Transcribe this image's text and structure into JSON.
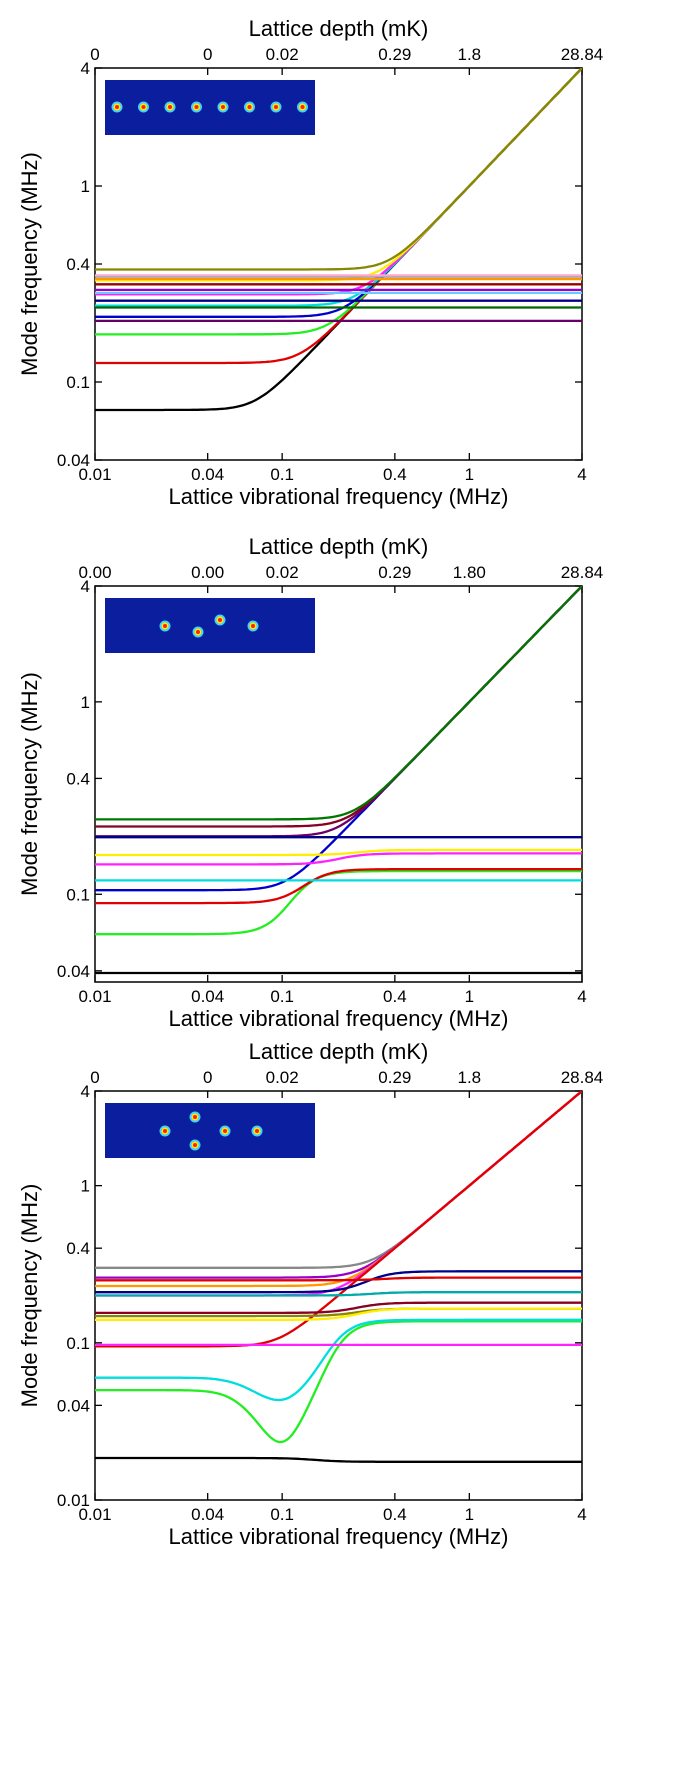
{
  "chart_data": [
    {
      "type": "line",
      "panel": "linear chain of 8 ions",
      "xscale": "log",
      "yscale": "log",
      "xlabel": "Lattice vibrational frequency (MHz)",
      "ylabel": "Mode frequency (MHz)",
      "top_axis_label": "Lattice depth (mK)",
      "xlim": [
        0.01,
        4
      ],
      "ylim": [
        0.04,
        4
      ],
      "x_ticks": [
        "0.01",
        "0.04",
        "0.1",
        "0.4",
        "1",
        "4"
      ],
      "y_ticks": [
        "0.04",
        "0.1",
        "0.4",
        "1",
        "4"
      ],
      "top_ticks": [
        {
          "x": 0.01,
          "label": "0"
        },
        {
          "x": 0.04,
          "label": "0"
        },
        {
          "x": 0.1,
          "label": "0.02"
        },
        {
          "x": 0.4,
          "label": "0.29"
        },
        {
          "x": 1,
          "label": "1.8"
        },
        {
          "x": 4,
          "label": "28.84"
        }
      ],
      "inset_ions": 8,
      "reference": {
        "color": "#aaaaaa",
        "dashed": true,
        "base": 0.072
      },
      "series": [
        {
          "color": "#000000",
          "base": 0.072,
          "trapped": true
        },
        {
          "color": "#e00000",
          "base": 0.125,
          "trapped": true
        },
        {
          "color": "#22ee22",
          "base": 0.175,
          "trapped": true
        },
        {
          "color": "#0000cc",
          "base": 0.215,
          "trapped": true
        },
        {
          "color": "#00dddd",
          "base": 0.245,
          "trapped": true
        },
        {
          "color": "#ff22ff",
          "base": 0.28,
          "trapped": true
        },
        {
          "color": "#ffee00",
          "base": 0.33,
          "trapped": true
        },
        {
          "color": "#888800",
          "base": 0.375,
          "trapped": true
        },
        {
          "color": "#006600",
          "base": 0.24,
          "trapped": false
        },
        {
          "color": "#660066",
          "base": 0.205,
          "trapped": false
        },
        {
          "color": "#000088",
          "base": 0.26,
          "trapped": false
        },
        {
          "color": "#990000",
          "base": 0.315,
          "trapped": false
        },
        {
          "color": "#9900cc",
          "base": 0.295,
          "trapped": false
        },
        {
          "color": "#ff9900",
          "base": 0.335,
          "trapped": false
        },
        {
          "color": "#999999",
          "base": 0.345,
          "trapped": false
        },
        {
          "color": "#ffaacc",
          "base": 0.35,
          "trapped": false
        },
        {
          "color": "#66ccff",
          "base": 0.285,
          "trapped": false
        }
      ]
    },
    {
      "type": "line",
      "panel": "four ions",
      "xscale": "log",
      "yscale": "log",
      "xlabel": "Lattice vibrational frequency (MHz)",
      "ylabel": "Mode frequency (MHz)",
      "top_axis_label": "Lattice depth (mK)",
      "xlim": [
        0.01,
        4
      ],
      "ylim": [
        0.035,
        4
      ],
      "x_ticks": [
        "0.01",
        "0.04",
        "0.1",
        "0.4",
        "1",
        "4"
      ],
      "y_ticks": [
        "0.04",
        "0.1",
        "0.4",
        "1",
        "4"
      ],
      "top_ticks": [
        {
          "x": 0.01,
          "label": "0.00"
        },
        {
          "x": 0.04,
          "label": "0.00"
        },
        {
          "x": 0.1,
          "label": "0.02"
        },
        {
          "x": 0.4,
          "label": "0.29"
        },
        {
          "x": 1,
          "label": "1.80"
        },
        {
          "x": 4,
          "label": "28.84"
        }
      ],
      "inset_ions": 4,
      "reference": {
        "color": "#aaaaaa",
        "dashed": true,
        "base": 0.105
      },
      "series": [
        {
          "color": "#0000cc",
          "base": 0.105,
          "trapped": true
        },
        {
          "color": "#6a006a",
          "base": 0.2,
          "trapped": true
        },
        {
          "color": "#880022",
          "base": 0.225,
          "trapped": true
        },
        {
          "color": "#007700",
          "base": 0.245,
          "trapped": true
        },
        {
          "color": "#000000",
          "base": 0.039,
          "trapped": false
        },
        {
          "color": "#22ee22",
          "base": 0.062,
          "final": 0.132,
          "cross": 0.11
        },
        {
          "color": "#e00000",
          "base": 0.09,
          "final": 0.135,
          "cross": 0.13
        },
        {
          "color": "#00dddd",
          "base": 0.118,
          "trapped": false
        },
        {
          "color": "#ff22ff",
          "base": 0.143,
          "final": 0.163,
          "cross": 0.2
        },
        {
          "color": "#ffee00",
          "base": 0.16,
          "final": 0.17,
          "cross": 0.25
        },
        {
          "color": "#000088",
          "base": 0.198,
          "trapped": false
        }
      ]
    },
    {
      "type": "line",
      "panel": "five ions",
      "xscale": "log",
      "yscale": "log",
      "xlabel": "Lattice vibrational frequency (MHz)",
      "ylabel": "Mode frequency (MHz)",
      "top_axis_label": "Lattice depth (mK)",
      "xlim": [
        0.01,
        4
      ],
      "ylim": [
        0.01,
        4
      ],
      "x_ticks": [
        "0.01",
        "0.04",
        "0.1",
        "0.4",
        "1",
        "4"
      ],
      "y_ticks": [
        "0.01",
        "0.04",
        "0.1",
        "0.4",
        "1",
        "4"
      ],
      "top_ticks": [
        {
          "x": 0.01,
          "label": "0"
        },
        {
          "x": 0.04,
          "label": "0"
        },
        {
          "x": 0.1,
          "label": "0.02"
        },
        {
          "x": 0.4,
          "label": "0.29"
        },
        {
          "x": 1,
          "label": "1.8"
        },
        {
          "x": 4,
          "label": "28.84"
        }
      ],
      "inset_ions": 5,
      "reference": {
        "color": "#aaaaaa",
        "dashed": true,
        "base": 0.095
      },
      "series": [
        {
          "color": "#888888",
          "base": 0.3,
          "trapped": true
        },
        {
          "color": "#9900cc",
          "base": 0.26,
          "trapped": true
        },
        {
          "color": "#ff9900",
          "base": 0.23,
          "trapped": true
        },
        {
          "color": "#ff22ff",
          "base": 0.2,
          "trapped": true
        },
        {
          "color": "#e00000",
          "base": 0.095,
          "trapped": true
        },
        {
          "color": "#000088",
          "base": 0.21,
          "final": 0.285,
          "cross": 0.28
        },
        {
          "color": "#e00000",
          "base": 0.25,
          "final": 0.26,
          "cross": 0.35
        },
        {
          "color": "#00aaaa",
          "base": 0.2,
          "final": 0.21,
          "cross": 0.3
        },
        {
          "color": "#880022",
          "base": 0.155,
          "final": 0.18,
          "cross": 0.25
        },
        {
          "color": "#888800",
          "base": 0.148,
          "final": 0.165,
          "cross": 0.25
        },
        {
          "color": "#ffee00",
          "base": 0.14,
          "final": 0.165,
          "cross": 0.25
        },
        {
          "color": "#22ee22",
          "base": 0.05,
          "final": 0.137,
          "dip": 0.1,
          "dipdepth": 0.55
        },
        {
          "color": "#00dddd",
          "base": 0.06,
          "final": 0.14,
          "dip": 0.1,
          "dipdepth": 0.3
        },
        {
          "color": "#ff22ff",
          "base": 0.097,
          "trapped": false
        },
        {
          "color": "#000000",
          "base": 0.0185,
          "final": 0.0175,
          "trapped": false
        }
      ]
    }
  ]
}
